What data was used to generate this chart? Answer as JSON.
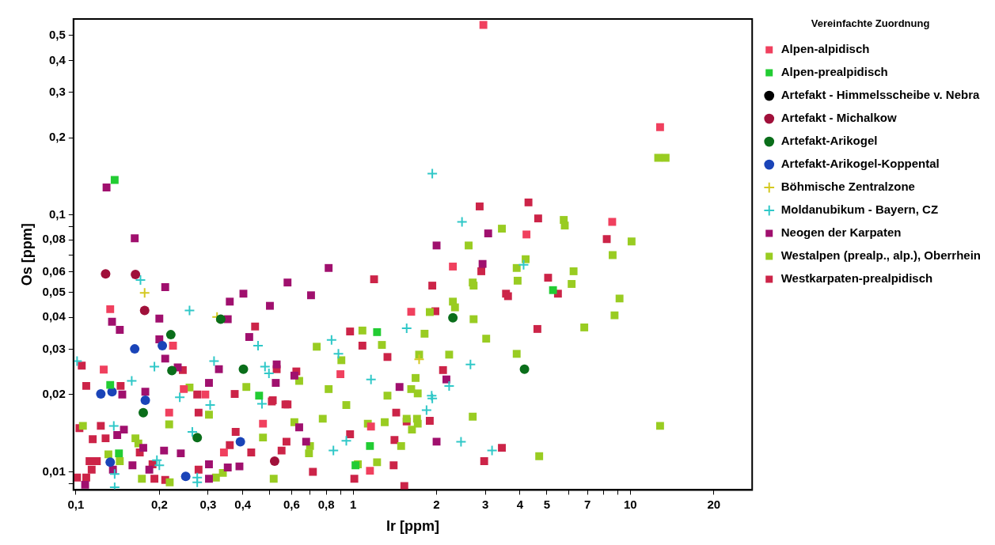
{
  "chart_data": {
    "type": "scatter",
    "xlabel": "Ir [ppm]",
    "ylabel": "Os [ppm]",
    "legend_title": "Vereinfachte Zuordnung",
    "legend": "right",
    "grid": false,
    "log": "xy",
    "xlim": [
      0.098,
      27.5
    ],
    "ylim": [
      0.0085,
      0.58
    ],
    "xticks": [
      {
        "value": 0.1,
        "label": "0,1"
      },
      {
        "value": 0.2,
        "label": "0,2"
      },
      {
        "value": 0.3,
        "label": "0,3"
      },
      {
        "value": 0.4,
        "label": "0,4"
      },
      {
        "value": 0.5,
        "label": null
      },
      {
        "value": 0.6,
        "label": "0,6"
      },
      {
        "value": 0.7,
        "label": null
      },
      {
        "value": 0.8,
        "label": "0,8"
      },
      {
        "value": 0.9,
        "label": null
      },
      1,
      2,
      3,
      4,
      5,
      {
        "value": 6,
        "label": null
      },
      7,
      {
        "value": 8,
        "label": null
      },
      {
        "value": 9,
        "label": null
      },
      10,
      20
    ],
    "yticks": [
      {
        "value": 0.009,
        "label": null
      },
      {
        "value": 0.01,
        "label": "0,01"
      },
      {
        "value": 0.02,
        "label": "0,02"
      },
      {
        "value": 0.03,
        "label": "0,03"
      },
      {
        "value": 0.04,
        "label": "0,04"
      },
      {
        "value": 0.05,
        "label": "0,05"
      },
      {
        "value": 0.06,
        "label": "0,06"
      },
      {
        "value": 0.07,
        "label": null
      },
      {
        "value": 0.08,
        "label": "0,08"
      },
      {
        "value": 0.09,
        "label": null
      },
      {
        "value": 0.1,
        "label": "0,1"
      },
      {
        "value": 0.2,
        "label": "0,2"
      },
      {
        "value": 0.3,
        "label": "0,3"
      },
      {
        "value": 0.4,
        "label": "0,4"
      },
      {
        "value": 0.5,
        "label": "0,5"
      }
    ],
    "series": [
      {
        "name": "Alpen-alpidisch",
        "color": "#f0405e",
        "marker": "square",
        "x": [
          2.95,
          12.8,
          8.6,
          4.22,
          2.29,
          1.62,
          0.9,
          1.16,
          1.15,
          0.133,
          0.224,
          0.126,
          0.245,
          0.293,
          0.217,
          0.473,
          0.342
        ],
        "values": [
          0.55,
          0.22,
          0.094,
          0.084,
          0.063,
          0.042,
          0.024,
          0.015,
          0.0101,
          0.043,
          0.031,
          0.025,
          0.021,
          0.02,
          0.017,
          0.0154,
          0.0119
        ]
      },
      {
        "name": "Alpen-prealpidisch",
        "color": "#22cc33",
        "marker": "square",
        "x": [
          0.138,
          5.26,
          1.22,
          1.15,
          1.02,
          0.133,
          0.458,
          0.143
        ],
        "values": [
          0.137,
          0.051,
          0.035,
          0.0126,
          0.0106,
          0.0218,
          0.0198,
          0.0118
        ]
      },
      {
        "name": "Artefakt - Himmelsscheibe v. Nebra",
        "color": "#000000",
        "marker": "circle"
      },
      {
        "name": "Artefakt - Michalkow",
        "color": "#a0103a",
        "marker": "circle",
        "x": [
          0.128,
          0.164,
          0.177,
          0.521
        ],
        "values": [
          0.059,
          0.0587,
          0.0425,
          0.011
        ]
      },
      {
        "name": "Artefakt-Arikogel",
        "color": "#0a6e1a",
        "marker": "circle",
        "x": [
          0.333,
          0.22,
          0.222,
          0.402,
          0.175,
          0.274,
          2.29,
          4.15
        ],
        "values": [
          0.0393,
          0.0342,
          0.0248,
          0.0251,
          0.017,
          0.0136,
          0.0398,
          0.0251
        ]
      },
      {
        "name": "Artefakt-Arikogel-Koppental",
        "color": "#1a44b8",
        "marker": "circle",
        "x": [
          0.163,
          0.205,
          0.123,
          0.135,
          0.178,
          0.392,
          0.133,
          0.249
        ],
        "values": [
          0.0301,
          0.031,
          0.0201,
          0.0205,
          0.019,
          0.0131,
          0.0109,
          0.0096
        ]
      },
      {
        "name": "Böhmische Zentralzone",
        "color": "#d4c820",
        "marker": "cross",
        "x": [
          0.177,
          0.323,
          1.73
        ],
        "values": [
          0.0498,
          0.0401,
          0.0274
        ]
      },
      {
        "name": "Moldanubikum - Bayern, CZ",
        "color": "#30c8c8",
        "marker": "cross",
        "x": [
          1.93,
          2.47,
          4.12,
          0.171,
          0.257,
          0.454,
          0.192,
          0.315,
          0.481,
          0.497,
          0.101,
          0.159,
          0.237,
          0.305,
          0.469,
          0.263,
          0.137,
          0.138,
          0.138,
          0.196,
          0.2,
          0.274,
          0.274,
          1.56,
          0.836,
          0.885,
          2.65,
          2.22,
          1.16,
          1.92,
          1.93,
          1.84,
          0.945,
          0.849,
          2.45,
          3.17
        ],
        "values": [
          0.145,
          0.094,
          0.064,
          0.0558,
          0.0425,
          0.031,
          0.0257,
          0.027,
          0.0257,
          0.0242,
          0.027,
          0.0226,
          0.0195,
          0.0182,
          0.0184,
          0.0143,
          0.0151,
          0.0098,
          0.0087,
          0.0111,
          0.0106,
          0.0095,
          0.0091,
          0.0362,
          0.0326,
          0.0288,
          0.0262,
          0.0216,
          0.0229,
          0.0198,
          0.0193,
          0.0174,
          0.0132,
          0.0121,
          0.0131,
          0.0121
        ]
      },
      {
        "name": "Neogen der Karpaten",
        "color": "#a0106e",
        "marker": "square",
        "x": [
          0.129,
          0.163,
          2.0,
          3.07,
          2.93,
          0.816,
          0.58,
          0.705,
          0.501,
          0.21,
          0.402,
          0.359,
          0.135,
          0.144,
          0.2,
          0.353,
          0.422,
          0.2,
          0.21,
          0.233,
          0.328,
          0.526,
          0.53,
          0.614,
          0.147,
          0.178,
          0.302,
          1.47,
          2.17,
          0.639,
          0.677,
          2.0,
          0.149,
          0.141,
          0.175,
          0.208,
          0.239,
          0.136,
          0.16,
          0.184,
          0.302,
          0.302,
          0.353,
          0.389,
          0.108
        ],
        "values": [
          0.128,
          0.0812,
          0.0761,
          0.0848,
          0.0645,
          0.0622,
          0.0546,
          0.0487,
          0.0443,
          0.0524,
          0.0494,
          0.046,
          0.0384,
          0.0357,
          0.0395,
          0.0393,
          0.0335,
          0.0328,
          0.0276,
          0.0255,
          0.0251,
          0.0222,
          0.0262,
          0.0237,
          0.02,
          0.0205,
          0.0222,
          0.0214,
          0.0229,
          0.0149,
          0.0131,
          0.0131,
          0.0146,
          0.0139,
          0.0124,
          0.0121,
          0.0118,
          0.0102,
          0.0106,
          0.0102,
          0.0107,
          0.0094,
          0.0104,
          0.0105,
          0.0089
        ]
      },
      {
        "name": "Westalpen (prealp., alp.), Oberrhein",
        "color": "#99cc22",
        "marker": "square",
        "x": [
          12.6,
          13.4,
          3.44,
          2.61,
          5.75,
          5.8,
          10.1,
          8.63,
          4.19,
          3.89,
          3.92,
          6.24,
          6.14,
          9.14,
          8.77,
          6.82,
          3.89,
          12.8,
          4.69,
          2.7,
          2.72,
          2.29,
          2.33,
          1.89,
          2.72,
          3.02,
          1.81,
          1.08,
          1.27,
          0.739,
          0.907,
          1.73,
          2.22,
          0.639,
          1.68,
          1.62,
          1.71,
          1.33,
          0.816,
          0.945,
          2.7,
          0.777,
          0.614,
          1.13,
          1.3,
          1.56,
          1.7,
          1.71,
          1.63,
          0.699,
          0.693,
          1.49,
          1.04,
          1.22,
          0.517,
          0.217,
          0.257,
          0.302,
          0.412,
          0.473,
          0.106,
          0.164,
          0.168,
          0.131,
          0.144,
          0.173,
          0.218,
          0.32,
          0.339
        ],
        "values": [
          0.167,
          0.167,
          0.0885,
          0.0761,
          0.0957,
          0.091,
          0.0789,
          0.0698,
          0.0673,
          0.0622,
          0.0555,
          0.0604,
          0.0539,
          0.0473,
          0.0407,
          0.0365,
          0.0288,
          0.0151,
          0.0115,
          0.0546,
          0.0531,
          0.046,
          0.0437,
          0.0419,
          0.0393,
          0.033,
          0.0345,
          0.0355,
          0.0312,
          0.0307,
          0.0272,
          0.0286,
          0.0286,
          0.0226,
          0.0232,
          0.021,
          0.0202,
          0.0198,
          0.021,
          0.0182,
          0.0164,
          0.0161,
          0.0156,
          0.0154,
          0.0156,
          0.0161,
          0.0161,
          0.0154,
          0.0146,
          0.0126,
          0.0118,
          0.0126,
          0.0107,
          0.0109,
          0.0094,
          0.0153,
          0.0213,
          0.0167,
          0.0214,
          0.0136,
          0.0151,
          0.0135,
          0.0129,
          0.0117,
          0.011,
          0.0094,
          0.0091,
          0.0095,
          0.0099
        ]
      },
      {
        "name": "Westkarpaten-prealpidisch",
        "color": "#cc2448",
        "marker": "square",
        "x": [
          2.86,
          4.29,
          4.65,
          8.22,
          2.9,
          1.19,
          1.93,
          3.56,
          1.98,
          5.05,
          5.48,
          4.62,
          3.62,
          0.975,
          1.08,
          1.33,
          2.11,
          0.53,
          0.624,
          0.58,
          0.513,
          1.43,
          1.56,
          1.89,
          0.975,
          0.575,
          0.552,
          1.41,
          3.44,
          2.97,
          1.4,
          0.716,
          1.01,
          1.53,
          0.443,
          0.105,
          0.109,
          0.145,
          0.243,
          0.274,
          0.277,
          0.374,
          0.509,
          0.57,
          0.377,
          0.103,
          0.123,
          0.115,
          0.128,
          0.17,
          0.112,
          0.119,
          0.114,
          0.101,
          0.109,
          0.189,
          0.192,
          0.21,
          0.277,
          0.359,
          0.429
        ],
        "values": [
          0.108,
          0.112,
          0.097,
          0.0806,
          0.0604,
          0.0562,
          0.0531,
          0.0494,
          0.0422,
          0.057,
          0.0494,
          0.036,
          0.0483,
          0.0352,
          0.031,
          0.028,
          0.0249,
          0.0251,
          0.0246,
          0.0183,
          0.019,
          0.017,
          0.0157,
          0.0158,
          0.014,
          0.0131,
          0.0121,
          0.0133,
          0.0124,
          0.011,
          0.0106,
          0.01,
          0.0094,
          0.0088,
          0.0368,
          0.0259,
          0.0216,
          0.0216,
          0.0249,
          0.02,
          0.017,
          0.0201,
          0.0188,
          0.0183,
          0.0143,
          0.0148,
          0.0151,
          0.0134,
          0.0135,
          0.0119,
          0.011,
          0.011,
          0.0102,
          0.0095,
          0.0095,
          0.0107,
          0.0094,
          0.0093,
          0.0102,
          0.0127,
          0.0119
        ]
      }
    ]
  }
}
